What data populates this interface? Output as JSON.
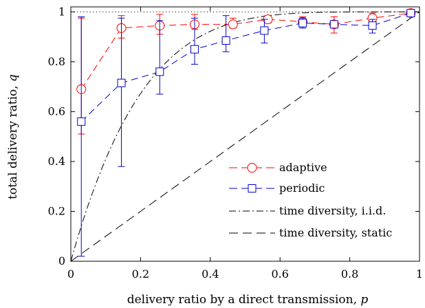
{
  "chart_data": {
    "type": "line",
    "xlabel": "delivery ratio by a direct transmission, ",
    "xlabel_var": "p",
    "ylabel": "total delivery ratio, ",
    "ylabel_var": "q",
    "xlim": [
      0,
      1
    ],
    "ylim": [
      0,
      1.02
    ],
    "xticks": [
      0,
      0.2,
      0.4,
      0.6,
      0.8,
      1
    ],
    "xtick_labels": [
      "0",
      "0.2",
      "0.4",
      "0.6",
      "0.8",
      "1"
    ],
    "yticks": [
      0,
      0.2,
      0.4,
      0.6,
      0.8,
      1
    ],
    "ytick_labels": [
      "0",
      "0.2",
      "0.4",
      "0.6",
      "0.8",
      "1"
    ],
    "grid": false,
    "legend_position": "bottom-right",
    "reference_line": {
      "y": 1,
      "style": "dotted"
    },
    "series": [
      {
        "name": "adaptive",
        "color": "#ff0000",
        "marker": "circle",
        "line_style": "dashed",
        "x": [
          0.03,
          0.145,
          0.255,
          0.355,
          0.465,
          0.565,
          0.665,
          0.755,
          0.865,
          0.975
        ],
        "y": [
          0.69,
          0.935,
          0.945,
          0.95,
          0.95,
          0.97,
          0.96,
          0.95,
          0.975,
          0.995
        ],
        "err_low": [
          0.51,
          0.895,
          0.91,
          0.93,
          0.935,
          0.955,
          0.95,
          0.915,
          0.955,
          0.99
        ],
        "err_high": [
          0.975,
          0.985,
          0.99,
          0.99,
          0.975,
          0.985,
          0.98,
          0.98,
          0.995,
          1.0
        ]
      },
      {
        "name": "periodic",
        "color": "#0000cc",
        "marker": "square",
        "line_style": "dashed",
        "x": [
          0.03,
          0.145,
          0.255,
          0.355,
          0.445,
          0.555,
          0.665,
          0.755,
          0.865,
          0.975
        ],
        "y": [
          0.56,
          0.715,
          0.76,
          0.85,
          0.885,
          0.925,
          0.955,
          0.95,
          0.945,
          0.995
        ],
        "err_low": [
          0.02,
          0.38,
          0.67,
          0.79,
          0.84,
          0.875,
          0.935,
          0.94,
          0.915,
          0.99
        ],
        "err_high": [
          0.98,
          0.975,
          0.965,
          0.975,
          0.985,
          0.97,
          0.975,
          0.96,
          0.97,
          1.0
        ]
      },
      {
        "name": "time diversity, i.i.d.",
        "color": "#000000",
        "line_style": "dashdot",
        "function": "1-(1-p)^k",
        "k": 5
      },
      {
        "name": "time diversity, static",
        "color": "#000000",
        "line_style": "dashed",
        "function": "p"
      }
    ]
  }
}
